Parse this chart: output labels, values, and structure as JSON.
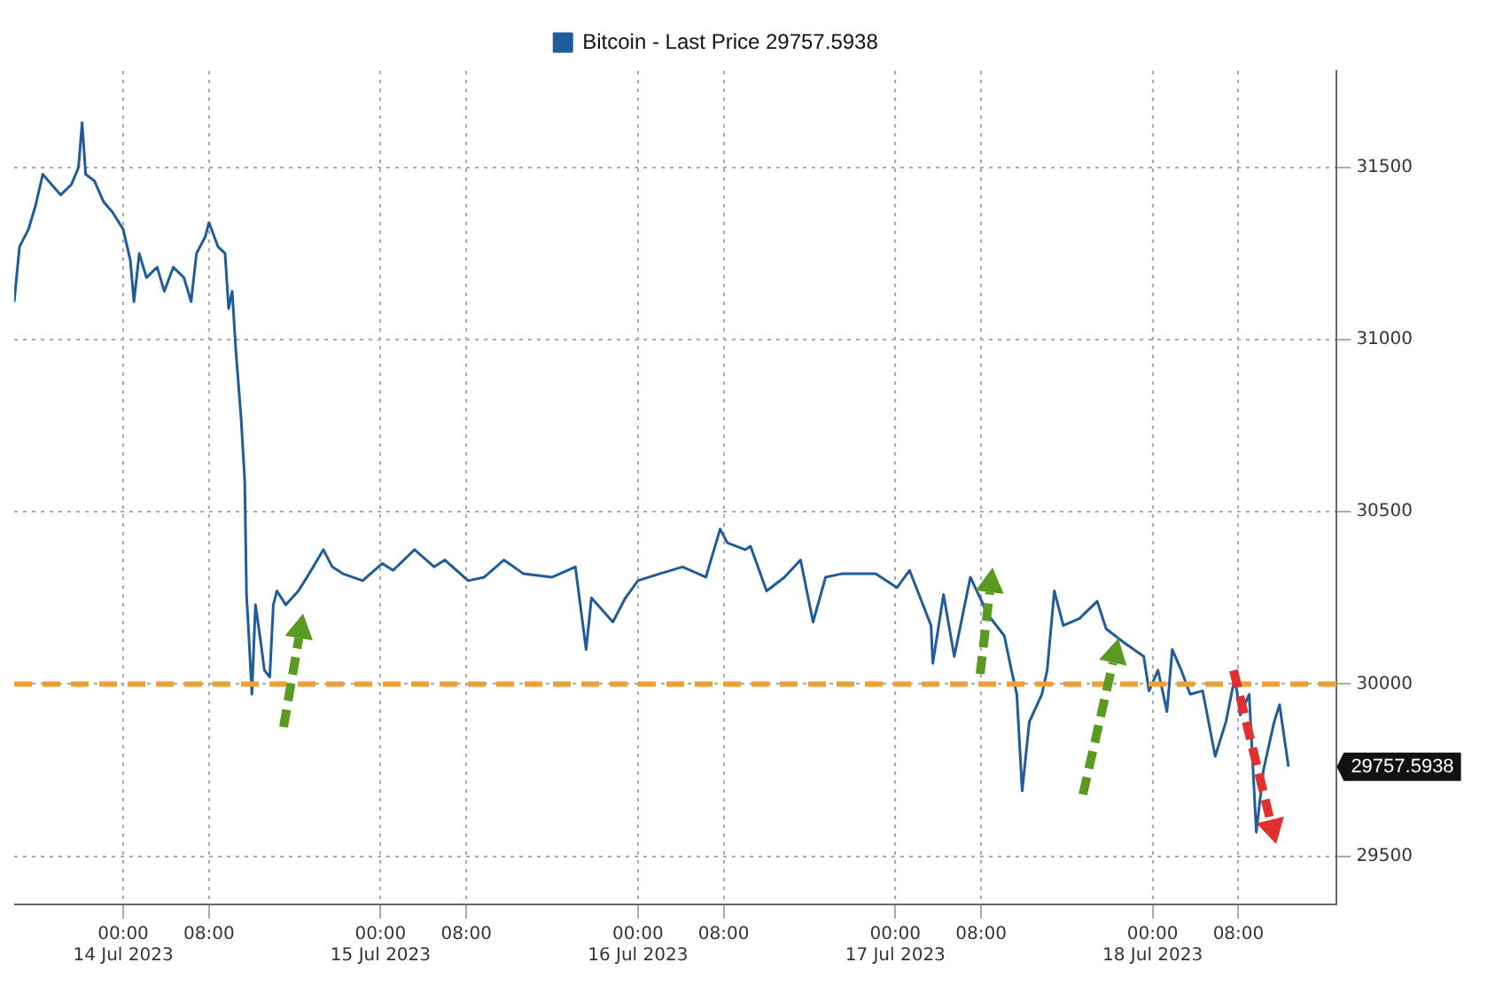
{
  "chart_data": {
    "type": "line",
    "x": [
      "2023-07-13T13:50",
      "2023-07-13T14:20",
      "2023-07-13T15:10",
      "2023-07-13T15:50",
      "2023-07-13T16:30",
      "2023-07-13T17:20",
      "2023-07-13T18:10",
      "2023-07-13T19:10",
      "2023-07-13T19:50",
      "2023-07-13T20:10",
      "2023-07-13T20:30",
      "2023-07-13T21:20",
      "2023-07-13T22:10",
      "2023-07-13T23:00",
      "2023-07-14T00:00",
      "2023-07-14T00:40",
      "2023-07-14T01:00",
      "2023-07-14T01:30",
      "2023-07-14T02:10",
      "2023-07-14T03:10",
      "2023-07-14T03:50",
      "2023-07-14T04:40",
      "2023-07-14T05:40",
      "2023-07-14T06:20",
      "2023-07-14T06:50",
      "2023-07-14T07:40",
      "2023-07-14T08:00",
      "2023-07-14T08:50",
      "2023-07-14T09:30",
      "2023-07-14T09:50",
      "2023-07-14T10:10",
      "2023-07-14T10:30",
      "2023-07-14T11:00",
      "2023-07-14T11:20",
      "2023-07-14T11:30",
      "2023-07-14T11:40",
      "2023-07-14T12:00",
      "2023-07-14T12:20",
      "2023-07-14T12:50",
      "2023-07-14T13:10",
      "2023-07-14T13:40",
      "2023-07-14T14:00",
      "2023-07-14T14:20",
      "2023-07-14T15:10",
      "2023-07-14T16:20",
      "2023-07-14T17:20",
      "2023-07-14T18:40",
      "2023-07-14T19:30",
      "2023-07-14T20:30",
      "2023-07-14T22:20",
      "2023-07-15T00:10",
      "2023-07-15T01:10",
      "2023-07-15T03:10",
      "2023-07-15T05:00",
      "2023-07-15T06:00",
      "2023-07-15T08:10",
      "2023-07-15T09:40",
      "2023-07-15T11:30",
      "2023-07-15T13:20",
      "2023-07-15T16:00",
      "2023-07-15T18:10",
      "2023-07-15T19:10",
      "2023-07-15T19:40",
      "2023-07-15T21:40",
      "2023-07-15T22:50",
      "2023-07-16T00:00",
      "2023-07-16T02:00",
      "2023-07-16T04:10",
      "2023-07-16T06:20",
      "2023-07-16T07:40",
      "2023-07-16T08:20",
      "2023-07-16T10:00",
      "2023-07-16T10:30",
      "2023-07-16T12:00",
      "2023-07-16T13:40",
      "2023-07-16T15:10",
      "2023-07-16T16:20",
      "2023-07-16T17:30",
      "2023-07-16T19:00",
      "2023-07-16T22:10",
      "2023-07-17T00:10",
      "2023-07-17T01:20",
      "2023-07-17T03:20",
      "2023-07-17T03:30",
      "2023-07-17T04:30",
      "2023-07-17T05:30",
      "2023-07-17T07:00",
      "2023-07-17T08:40",
      "2023-07-17T10:10",
      "2023-07-17T10:50",
      "2023-07-17T11:20",
      "2023-07-17T11:50",
      "2023-07-17T12:30",
      "2023-07-17T13:40",
      "2023-07-17T14:10",
      "2023-07-17T14:50",
      "2023-07-17T15:40",
      "2023-07-17T17:10",
      "2023-07-17T18:50",
      "2023-07-17T19:40",
      "2023-07-17T21:20",
      "2023-07-17T23:10",
      "2023-07-17T23:40",
      "2023-07-18T00:30",
      "2023-07-18T01:20",
      "2023-07-18T01:50",
      "2023-07-18T02:40",
      "2023-07-18T03:30",
      "2023-07-18T04:40",
      "2023-07-18T05:50",
      "2023-07-18T06:50",
      "2023-07-18T07:40",
      "2023-07-18T08:10",
      "2023-07-18T09:00",
      "2023-07-18T09:40",
      "2023-07-18T10:20",
      "2023-07-18T11:20",
      "2023-07-18T11:50",
      "2023-07-18T12:40"
    ],
    "series": [
      {
        "name": "Bitcoin - Last Price 29757.5938",
        "color": "#1f5c99",
        "values": [
          31110,
          31270,
          31320,
          31390,
          31480,
          31450,
          31420,
          31450,
          31500,
          31630,
          31480,
          31460,
          31400,
          31370,
          31320,
          31230,
          31110,
          31250,
          31180,
          31210,
          31140,
          31210,
          31180,
          31110,
          31250,
          31300,
          31340,
          31270,
          31250,
          31090,
          31140,
          30970,
          30770,
          30590,
          30260,
          30170,
          29970,
          30230,
          30120,
          30040,
          30020,
          30230,
          30270,
          30230,
          30270,
          30320,
          30390,
          30340,
          30320,
          30300,
          30350,
          30330,
          30390,
          30340,
          30360,
          30300,
          30310,
          30360,
          30320,
          30310,
          30340,
          30100,
          30250,
          30180,
          30250,
          30300,
          30320,
          30340,
          30310,
          30450,
          30410,
          30390,
          30400,
          30270,
          30310,
          30360,
          30180,
          30310,
          30320,
          30320,
          30280,
          30330,
          30170,
          30060,
          30260,
          30080,
          30310,
          30200,
          30140,
          30040,
          29970,
          29690,
          29890,
          29970,
          30040,
          30270,
          30170,
          30190,
          30240,
          30160,
          30120,
          30080,
          29980,
          30040,
          29920,
          30100,
          30040,
          29970,
          29980,
          29790,
          29890,
          30020,
          29910,
          29970,
          29570,
          29750,
          29890,
          29940,
          29760
        ]
      }
    ],
    "xlim": [
      "2023-07-13T13:50",
      "2023-07-18T17:10"
    ],
    "xticks": [
      {
        "value": "2023-07-14T00:00",
        "label": "00:00\n14 Jul 2023"
      },
      {
        "value": "2023-07-14T08:00",
        "label": "08:00"
      },
      {
        "value": "2023-07-15T00:00",
        "label": "00:00\n15 Jul 2023"
      },
      {
        "value": "2023-07-15T08:00",
        "label": "08:00"
      },
      {
        "value": "2023-07-16T00:00",
        "label": "00:00\n16 Jul 2023"
      },
      {
        "value": "2023-07-16T08:00",
        "label": "08:00"
      },
      {
        "value": "2023-07-17T00:00",
        "label": "00:00\n17 Jul 2023"
      },
      {
        "value": "2023-07-17T08:00",
        "label": "08:00"
      },
      {
        "value": "2023-07-18T00:00",
        "label": "00:00\n18 Jul 2023"
      },
      {
        "value": "2023-07-18T08:00",
        "label": "08:00"
      }
    ],
    "ylim": [
      29360,
      31780
    ],
    "yticks": [
      29500,
      30000,
      30500,
      31000,
      31500
    ],
    "ref_lines": [
      {
        "axis": "y",
        "value": 30000,
        "color": "#f0a030",
        "line_style": "dashed"
      }
    ],
    "annotations": [
      "29757.5938"
    ],
    "grid": true,
    "legend": "top",
    "marker": "none",
    "line_style": "solid"
  }
}
